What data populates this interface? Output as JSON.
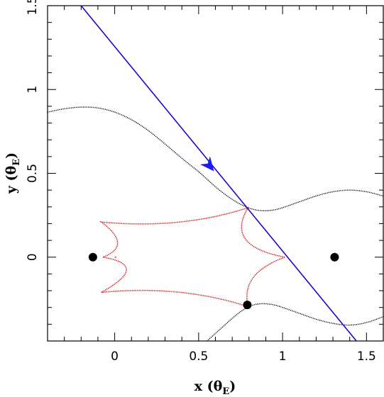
{
  "chart_data": {
    "type": "line",
    "title": "",
    "xlabel": "x (θ",
    "xlabel_sub": "E",
    "xlabel_close": ")",
    "ylabel": "y (θ",
    "ylabel_sub": "E",
    "ylabel_close": ")",
    "xlim": [
      -0.4,
      1.6
    ],
    "ylim": [
      -0.5,
      1.5
    ],
    "x_ticks": [
      {
        "value": 0,
        "label": "0"
      },
      {
        "value": 0.5,
        "label": "0.5"
      },
      {
        "value": 1,
        "label": "1"
      },
      {
        "value": 1.5,
        "label": "1.5"
      }
    ],
    "y_ticks": [
      {
        "value": 0,
        "label": "0"
      },
      {
        "value": 0.5,
        "label": "0.5"
      },
      {
        "value": 1,
        "label": "1"
      },
      {
        "value": 1.5,
        "label": "1.5"
      }
    ],
    "colors": {
      "caustic": "#d42020",
      "critical_curve": "#000000",
      "source_track": "#2a00c8",
      "arrow": "#1a1aff",
      "lens": "#000000"
    },
    "lenses": [
      {
        "x": -0.13,
        "y": 0.0
      },
      {
        "x": 1.31,
        "y": 0.0
      },
      {
        "x": 0.79,
        "y": -0.285
      }
    ],
    "source_track": {
      "points": [
        [
          -0.2,
          1.5
        ],
        [
          1.44,
          -0.5
        ]
      ],
      "arrow_at": [
        0.565,
        0.545
      ]
    },
    "critical_curve_upper": [
      [
        -0.4,
        0.865
      ],
      [
        -0.3,
        0.885
      ],
      [
        -0.2,
        0.895
      ],
      [
        -0.1,
        0.89
      ],
      [
        0.0,
        0.865
      ],
      [
        0.1,
        0.82
      ],
      [
        0.2,
        0.755
      ],
      [
        0.3,
        0.675
      ],
      [
        0.4,
        0.59
      ],
      [
        0.5,
        0.51
      ],
      [
        0.55,
        0.465
      ],
      [
        0.6,
        0.42
      ],
      [
        0.65,
        0.38
      ],
      [
        0.7,
        0.345
      ],
      [
        0.75,
        0.315
      ],
      [
        0.8,
        0.293
      ],
      [
        0.85,
        0.28
      ],
      [
        0.9,
        0.277
      ],
      [
        0.95,
        0.282
      ],
      [
        1.0,
        0.295
      ],
      [
        1.1,
        0.33
      ],
      [
        1.2,
        0.365
      ],
      [
        1.3,
        0.39
      ],
      [
        1.4,
        0.4
      ],
      [
        1.5,
        0.39
      ],
      [
        1.6,
        0.365
      ]
    ],
    "critical_curve_lower": [
      [
        0.55,
        -0.5
      ],
      [
        0.6,
        -0.455
      ],
      [
        0.65,
        -0.41
      ],
      [
        0.7,
        -0.365
      ],
      [
        0.75,
        -0.325
      ],
      [
        0.8,
        -0.295
      ],
      [
        0.85,
        -0.28
      ],
      [
        0.9,
        -0.278
      ],
      [
        0.95,
        -0.285
      ],
      [
        1.0,
        -0.3
      ],
      [
        1.1,
        -0.335
      ],
      [
        1.2,
        -0.37
      ],
      [
        1.3,
        -0.395
      ],
      [
        1.4,
        -0.405
      ],
      [
        1.5,
        -0.39
      ],
      [
        1.6,
        -0.355
      ]
    ],
    "caustic_cusps": [
      [
        0.795,
        0.295
      ],
      [
        1.015,
        0.0
      ],
      [
        0.795,
        -0.295
      ],
      [
        -0.08,
        -0.21
      ],
      [
        -0.07,
        0.0
      ],
      [
        -0.08,
        0.21
      ]
    ],
    "caustic_inner_point": [
      0.005,
      0.0
    ]
  }
}
